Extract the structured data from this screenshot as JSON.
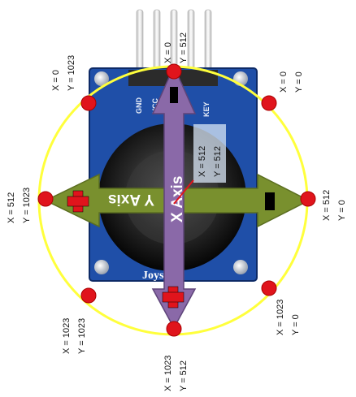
{
  "pins": {
    "gnd": "GND",
    "vcc": "VCC",
    "key": "KEY"
  },
  "board": {
    "brand": "Joystick"
  },
  "axes": {
    "x_axis": "X Axis",
    "y_axis": "Y Axis"
  },
  "positions": {
    "top": {
      "x": "X = 0",
      "y": "Y = 512"
    },
    "top_left": {
      "x": "X = 0",
      "y": "Y = 1023"
    },
    "top_right": {
      "x": "X = 0",
      "y": "Y = 0"
    },
    "left": {
      "x": "X = 512",
      "y": "Y = 1023"
    },
    "right": {
      "x": "X = 512",
      "y": "Y = 0"
    },
    "center": {
      "x": "X = 512",
      "y": "Y = 512"
    },
    "bottom_left": {
      "x": "X = 1023",
      "y": "Y = 1023"
    },
    "bottom_right": {
      "x": "X = 1023",
      "y": "Y = 0"
    },
    "bottom": {
      "x": "X = 1023",
      "y": "Y = 512"
    }
  },
  "colors": {
    "board": "#1f4fa8",
    "ring": "#ffff3c",
    "marker": "#e0141c",
    "x_arrow": "#8a69a8",
    "y_arrow": "#79902e"
  }
}
